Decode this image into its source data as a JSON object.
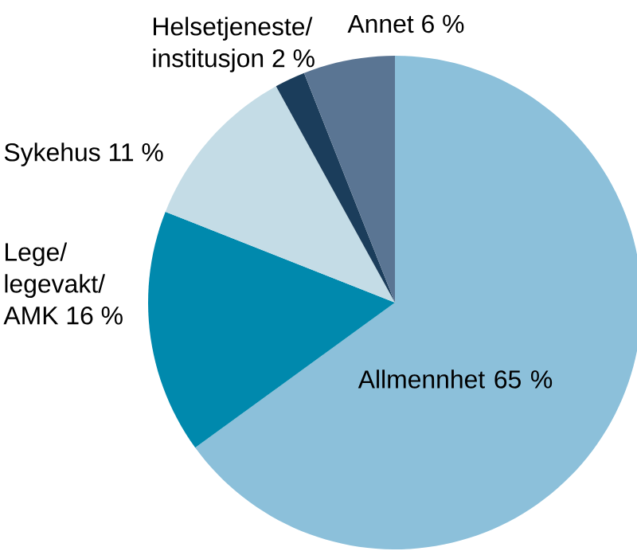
{
  "chart_data": {
    "type": "pie",
    "categories": [
      "Allmennhet",
      "Lege/ legevakt/ AMK",
      "Sykehus",
      "Helsetjeneste/ institusjon",
      "Annet"
    ],
    "values": [
      65,
      16,
      11,
      2,
      6
    ],
    "value_labels": [
      "65 %",
      "16 %",
      "11 %",
      "2 %",
      "6 %"
    ],
    "colors": [
      "#8cc0da",
      "#0089ad",
      "#c4dce6",
      "#1b3d5b",
      "#5a7593"
    ]
  }
}
